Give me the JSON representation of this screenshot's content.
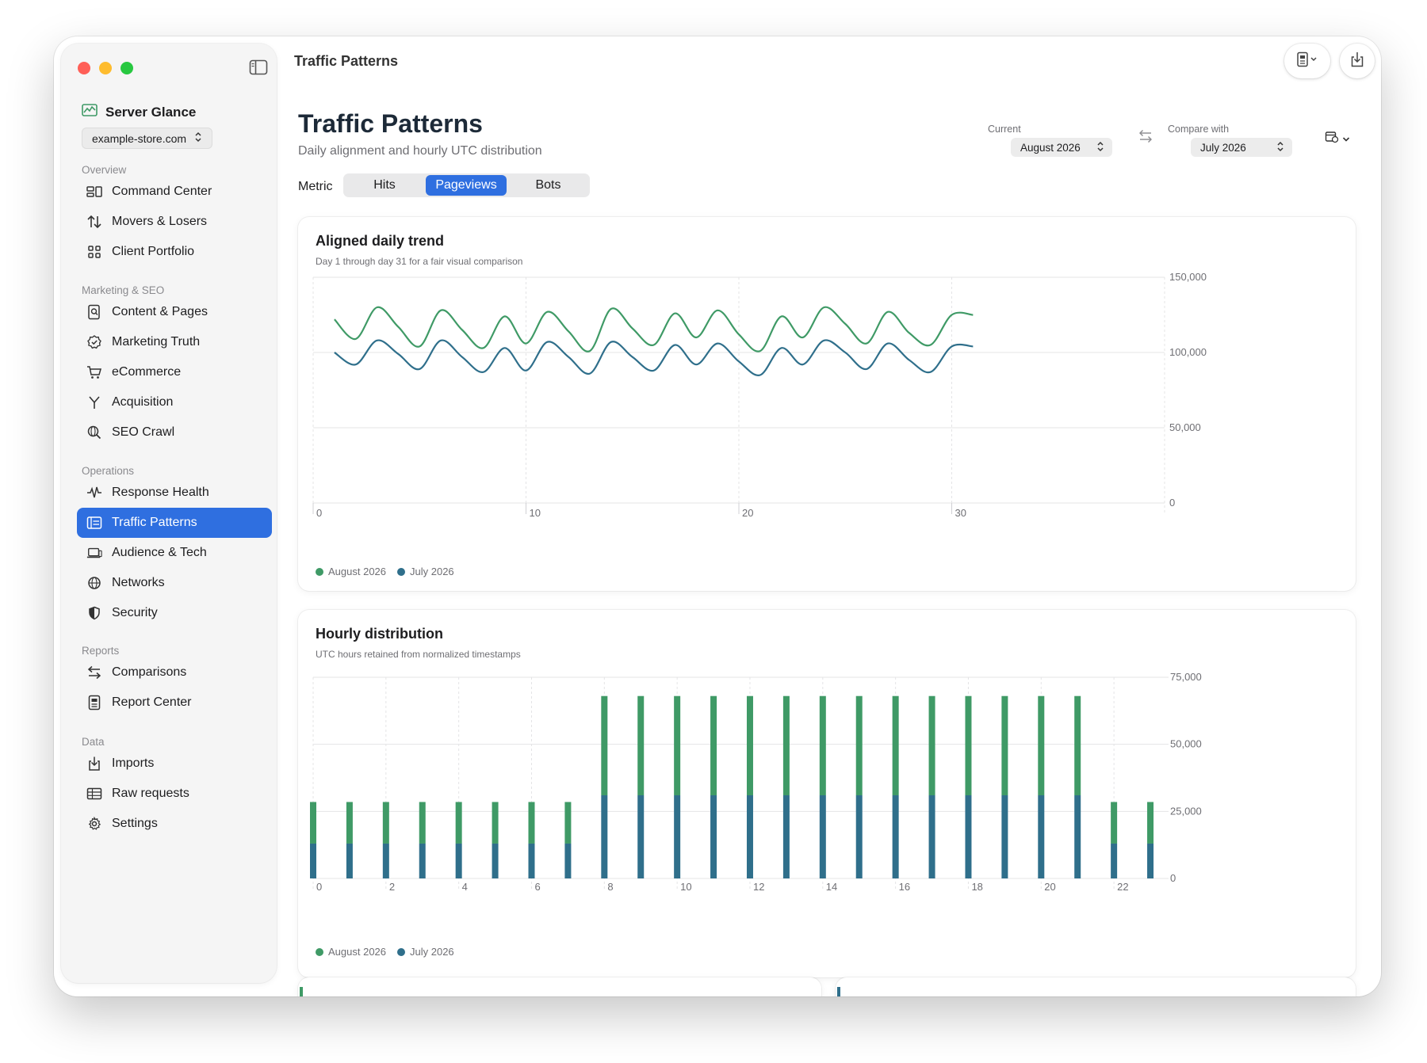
{
  "window": {
    "title": "Traffic Patterns"
  },
  "sidebar": {
    "brand": "Server Glance",
    "site": "example-store.com",
    "sections": {
      "overview": "Overview",
      "marketing": "Marketing & SEO",
      "operations": "Operations",
      "reports": "Reports",
      "data": "Data"
    },
    "items": {
      "command_center": "Command Center",
      "movers_losers": "Movers & Losers",
      "client_portfolio": "Client Portfolio",
      "content_pages": "Content & Pages",
      "marketing_truth": "Marketing Truth",
      "ecommerce": "eCommerce",
      "acquisition": "Acquisition",
      "seo_crawl": "SEO Crawl",
      "response_health": "Response Health",
      "traffic_patterns": "Traffic Patterns",
      "audience_tech": "Audience & Tech",
      "networks": "Networks",
      "security": "Security",
      "comparisons": "Comparisons",
      "report_center": "Report Center",
      "imports": "Imports",
      "raw_requests": "Raw requests",
      "settings": "Settings"
    },
    "active_item": "traffic_patterns",
    "accent": "#2f6fe0"
  },
  "header": {
    "title": "Traffic Patterns",
    "subtitle": "Daily alignment and hourly UTC distribution",
    "current_label": "Current",
    "current_value": "August 2026",
    "compare_label": "Compare with",
    "compare_value": "July 2026",
    "metric_label": "Metric",
    "metrics": [
      "Hits",
      "Pageviews",
      "Bots"
    ],
    "active_metric": "Pageviews"
  },
  "charts": {
    "daily": {
      "title": "Aligned daily trend",
      "subtitle": "Day 1 through day 31 for a fair visual comparison"
    },
    "hourly": {
      "title": "Hourly distribution",
      "subtitle": "UTC hours retained from normalized timestamps"
    }
  },
  "chart_data": [
    {
      "type": "line",
      "title": "Aligned daily trend",
      "subtitle": "Day 1 through day 31 for a fair visual comparison",
      "xlim": [
        0,
        40
      ],
      "ylim": [
        0,
        150000
      ],
      "x_ticks": [
        0,
        10,
        20,
        30
      ],
      "y_ticks": [
        0,
        50000,
        100000,
        150000
      ],
      "y_tick_labels": [
        "0",
        "50,000",
        "100,000",
        "150,000"
      ],
      "grid": true,
      "legend": "bottom-left",
      "x": [
        1,
        2,
        3,
        4,
        5,
        6,
        7,
        8,
        9,
        10,
        11,
        12,
        13,
        14,
        15,
        16,
        17,
        18,
        19,
        20,
        21,
        22,
        23,
        24,
        25,
        26,
        27,
        28,
        29,
        30,
        31
      ],
      "series": [
        {
          "name": "August 2026",
          "color": "#3f9a66",
          "values": [
            122000,
            109000,
            130000,
            117000,
            104000,
            128000,
            115000,
            103000,
            124000,
            106000,
            127000,
            114000,
            101000,
            129000,
            116000,
            105000,
            126000,
            110000,
            128000,
            112000,
            101000,
            124000,
            110000,
            130000,
            119000,
            106000,
            127000,
            113000,
            105000,
            125000,
            125000
          ]
        },
        {
          "name": "July 2026",
          "color": "#2f6f8b",
          "values": [
            100000,
            92000,
            108000,
            99000,
            89000,
            108000,
            97000,
            87000,
            103000,
            88000,
            107000,
            97000,
            86000,
            107000,
            97000,
            88000,
            105000,
            92000,
            106000,
            94000,
            85000,
            103000,
            92000,
            108000,
            100000,
            89000,
            106000,
            95000,
            87000,
            104000,
            104000
          ]
        }
      ]
    },
    {
      "type": "bar",
      "stacked": true,
      "title": "Hourly distribution",
      "subtitle": "UTC hours retained from normalized timestamps",
      "categories": [
        0,
        1,
        2,
        3,
        4,
        5,
        6,
        7,
        8,
        9,
        10,
        11,
        12,
        13,
        14,
        15,
        16,
        17,
        18,
        19,
        20,
        21,
        22,
        23
      ],
      "x_tick_labels": [
        "0",
        "2",
        "4",
        "6",
        "8",
        "10",
        "12",
        "14",
        "16",
        "18",
        "20",
        "22"
      ],
      "ylim": [
        0,
        75000
      ],
      "y_ticks": [
        0,
        25000,
        50000,
        75000
      ],
      "y_tick_labels": [
        "0",
        "25,000",
        "50,000",
        "75,000"
      ],
      "grid": true,
      "legend": "bottom-left",
      "series": [
        {
          "name": "July 2026",
          "color": "#2f6f8b",
          "values": [
            13000,
            13000,
            13000,
            13000,
            13000,
            13000,
            13000,
            13000,
            31000,
            31000,
            31000,
            31000,
            31000,
            31000,
            31000,
            31000,
            31000,
            31000,
            31000,
            31000,
            31000,
            31000,
            13000,
            13000
          ]
        },
        {
          "name": "August 2026",
          "color": "#3f9a66",
          "values": [
            15500,
            15500,
            15500,
            15500,
            15500,
            15500,
            15500,
            15500,
            37000,
            37000,
            37000,
            37000,
            37000,
            37000,
            37000,
            37000,
            37000,
            37000,
            37000,
            37000,
            37000,
            37000,
            15500,
            15500
          ]
        }
      ]
    }
  ]
}
